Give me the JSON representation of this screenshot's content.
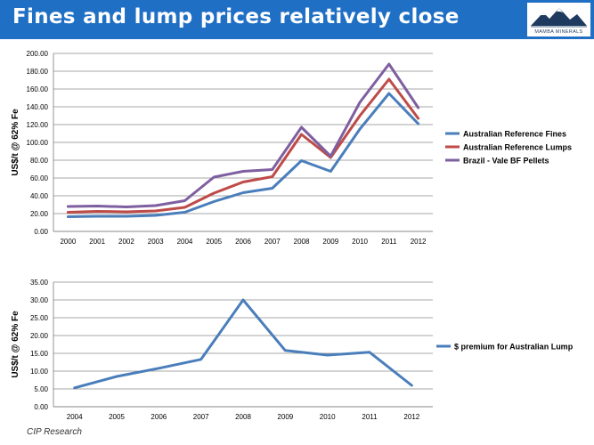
{
  "header": {
    "title": "Fines and lump prices relatively close",
    "logo_text": "MAMBA MINERALS"
  },
  "footer": {
    "source": "CIP Research"
  },
  "colors": {
    "header_bg": "#1f6fc5",
    "fines": "#4a7ebb",
    "lumps": "#be4b48",
    "pellets": "#7e5fa0",
    "premium": "#4a7ebb",
    "grid": "#8a8a8a"
  },
  "chart_data": [
    {
      "type": "line",
      "title": "",
      "xlabel": "",
      "ylabel": "US$/t @ 62% Fe",
      "x": [
        "2000",
        "2001",
        "2002",
        "2003",
        "2004",
        "2005",
        "2006",
        "2007",
        "2008",
        "2009",
        "2010",
        "2011",
        "2012"
      ],
      "ylim": [
        0,
        200
      ],
      "yticks": [
        "0.00",
        "20.00",
        "40.00",
        "60.00",
        "80.00",
        "100.00",
        "120.00",
        "140.00",
        "160.00",
        "180.00",
        "200.00"
      ],
      "grid": true,
      "legend": "right",
      "series": [
        {
          "name": "Australian Reference Fines",
          "color": "#4a7ebb",
          "values": [
            16.5,
            17,
            17,
            18,
            21.5,
            33.5,
            43.5,
            48.5,
            79.5,
            67.5,
            115,
            155,
            121
          ]
        },
        {
          "name": "Australian Reference Lumps",
          "color": "#be4b48",
          "values": [
            21.5,
            22.5,
            22,
            23,
            27,
            43,
            55.5,
            61.5,
            109,
            83,
            130,
            171,
            127
          ]
        },
        {
          "name": "Brazil - Vale BF Pellets",
          "color": "#7e5fa0",
          "values": [
            28,
            28.5,
            27.5,
            29,
            34.5,
            61,
            67.5,
            69.5,
            117,
            84.5,
            145,
            188,
            139
          ]
        }
      ]
    },
    {
      "type": "line",
      "title": "",
      "xlabel": "",
      "ylabel": "US$/t @ 62% Fe",
      "x": [
        "2004",
        "2005",
        "2006",
        "2007",
        "2008",
        "2009",
        "2010",
        "2011",
        "2012"
      ],
      "ylim": [
        0,
        35
      ],
      "yticks": [
        "0.00",
        "5.00",
        "10.00",
        "15.00",
        "20.00",
        "25.00",
        "30.00",
        "35.00"
      ],
      "grid": true,
      "legend": "right",
      "series": [
        {
          "name": "$ premium for Australian Lump",
          "color": "#4a7ebb",
          "values": [
            5.3,
            8.5,
            10.8,
            13.3,
            30,
            15.8,
            14.5,
            15.3,
            6
          ]
        }
      ]
    }
  ]
}
